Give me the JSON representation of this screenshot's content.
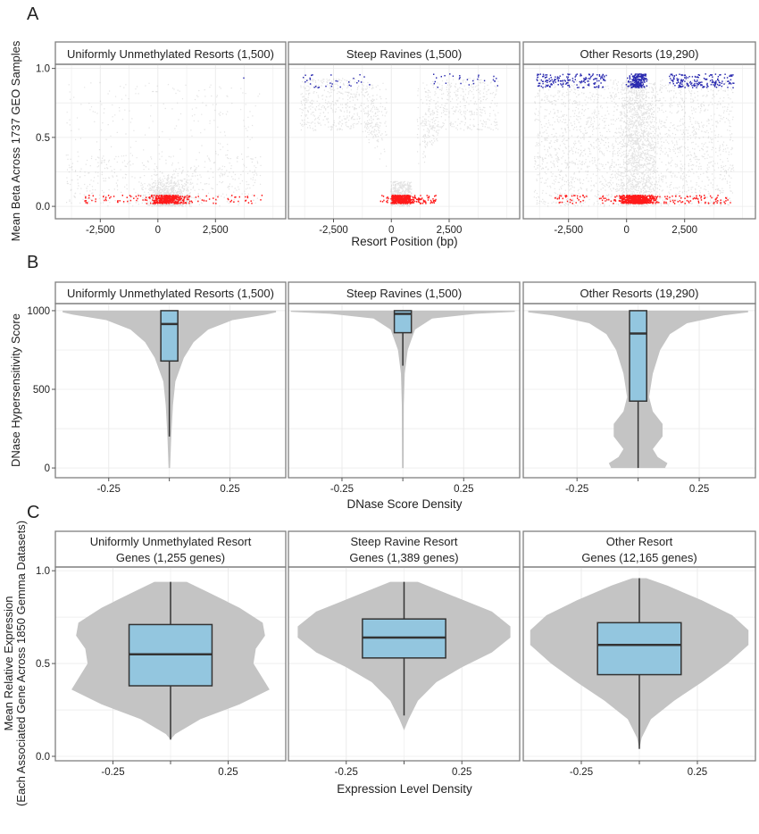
{
  "colors": {
    "grey_points": "#b0b0b0",
    "red_points": "#ff1a1a",
    "blue_points": "#2b2bb0",
    "violin": "#c4c4c4",
    "box": "#93c6df",
    "strip_bg": "#ffffff",
    "frame": "#7f7f7f"
  },
  "chart_data": [
    {
      "panel_label": "A",
      "type": "scatter",
      "xlabel": "Resort Position (bp)",
      "ylabel": "Mean Beta Across 1737 GEO Samples",
      "xlim": [
        -4450,
        5550
      ],
      "ylim": [
        -0.09,
        1.03
      ],
      "xticks": [
        {
          "v": -2500,
          "label": "-2,500"
        },
        {
          "v": 0,
          "label": "0"
        },
        {
          "v": 2500,
          "label": "2,500"
        }
      ],
      "yticks": [
        {
          "v": 0,
          "label": "0.0"
        },
        {
          "v": 0.5,
          "label": "0.5"
        },
        {
          "v": 1,
          "label": "1.0"
        }
      ],
      "grid": true,
      "facets": [
        {
          "title": "Uniformly Unmethylated Resorts (1,500)",
          "pattern": "unmethylated"
        },
        {
          "title": "Steep Ravines (1,500)",
          "pattern": "ravine"
        },
        {
          "title": "Other Resorts (19,290)",
          "pattern": "other"
        }
      ]
    },
    {
      "panel_label": "B",
      "type": "violin",
      "xlabel": "DNase Score Density",
      "ylabel": "DNase Hypersensitivity Score",
      "xlim": [
        -0.47,
        0.48
      ],
      "ylim": [
        -62,
        1045
      ],
      "xticks": [
        {
          "v": -0.25,
          "label": "-0.25"
        },
        {
          "v": 0.25,
          "label": "0.25"
        }
      ],
      "yticks": [
        {
          "v": 0,
          "label": "0"
        },
        {
          "v": 500,
          "label": "500"
        },
        {
          "v": 1000,
          "label": "1000"
        }
      ],
      "grid": true,
      "facets": [
        {
          "title": "Uniformly Unmethylated Resorts (1,500)",
          "box": {
            "min": 200,
            "q1": 680,
            "median": 915,
            "q3": 1000,
            "max": 1000
          },
          "density": [
            [
              0,
              0.003
            ],
            [
              200,
              0.008
            ],
            [
              400,
              0.015
            ],
            [
              550,
              0.025
            ],
            [
              700,
              0.06
            ],
            [
              800,
              0.1
            ],
            [
              880,
              0.16
            ],
            [
              940,
              0.26
            ],
            [
              975,
              0.4
            ],
            [
              990,
              0.44
            ],
            [
              1000,
              0.44
            ]
          ]
        },
        {
          "title": "Steep Ravines (1,500)",
          "box": {
            "min": 650,
            "q1": 860,
            "median": 980,
            "q3": 1000,
            "max": 1000
          },
          "density": [
            [
              0,
              0.003
            ],
            [
              400,
              0.004
            ],
            [
              600,
              0.008
            ],
            [
              750,
              0.02
            ],
            [
              880,
              0.05
            ],
            [
              950,
              0.12
            ],
            [
              980,
              0.3
            ],
            [
              992,
              0.46
            ],
            [
              1000,
              0.46
            ]
          ]
        },
        {
          "title": "Other Resorts (19,290)",
          "box": {
            "min": 0,
            "q1": 425,
            "median": 855,
            "q3": 1000,
            "max": 1000
          },
          "density": [
            [
              0,
              0.11
            ],
            [
              30,
              0.12
            ],
            [
              70,
              0.08
            ],
            [
              120,
              0.06
            ],
            [
              200,
              0.1
            ],
            [
              280,
              0.1
            ],
            [
              360,
              0.06
            ],
            [
              450,
              0.045
            ],
            [
              600,
              0.06
            ],
            [
              750,
              0.09
            ],
            [
              850,
              0.13
            ],
            [
              920,
              0.2
            ],
            [
              970,
              0.35
            ],
            [
              990,
              0.45
            ],
            [
              1000,
              0.45
            ]
          ]
        }
      ]
    },
    {
      "panel_label": "C",
      "type": "violin",
      "xlabel": "Expression Level Density",
      "ylabel": "Mean Relative Expression",
      "ylabel2": "(Each Associated Gene Across 1850 Gemma Datasets)",
      "xlim": [
        -0.5,
        0.5
      ],
      "ylim": [
        -0.024,
        1.02
      ],
      "xticks": [
        {
          "v": -0.25,
          "label": "-0.25"
        },
        {
          "v": 0.25,
          "label": "0.25"
        }
      ],
      "yticks": [
        {
          "v": 0,
          "label": "0.0"
        },
        {
          "v": 0.5,
          "label": "0.5"
        },
        {
          "v": 1,
          "label": "1.0"
        }
      ],
      "grid": true,
      "facets": [
        {
          "title": "Uniformly Unmethylated Resort",
          "title2": "Genes (1,255 genes)",
          "box": {
            "min": 0.09,
            "q1": 0.38,
            "median": 0.55,
            "q3": 0.71,
            "max": 0.94
          },
          "density": [
            [
              0.09,
              0.0
            ],
            [
              0.12,
              0.02
            ],
            [
              0.2,
              0.13
            ],
            [
              0.28,
              0.3
            ],
            [
              0.36,
              0.43
            ],
            [
              0.42,
              0.4
            ],
            [
              0.5,
              0.36
            ],
            [
              0.58,
              0.37
            ],
            [
              0.65,
              0.41
            ],
            [
              0.72,
              0.4
            ],
            [
              0.8,
              0.3
            ],
            [
              0.88,
              0.17
            ],
            [
              0.94,
              0.07
            ]
          ]
        },
        {
          "title": "Steep Ravine Resort",
          "title2": "Genes (1,389 genes)",
          "box": {
            "min": 0.22,
            "q1": 0.53,
            "median": 0.64,
            "q3": 0.74,
            "max": 0.94
          },
          "density": [
            [
              0.14,
              0.0
            ],
            [
              0.2,
              0.02
            ],
            [
              0.3,
              0.06
            ],
            [
              0.4,
              0.14
            ],
            [
              0.48,
              0.25
            ],
            [
              0.56,
              0.38
            ],
            [
              0.64,
              0.46
            ],
            [
              0.7,
              0.46
            ],
            [
              0.78,
              0.38
            ],
            [
              0.86,
              0.22
            ],
            [
              0.94,
              0.06
            ]
          ]
        },
        {
          "title": "Other Resort",
          "title2": "Genes (12,165 genes)",
          "box": {
            "min": 0.04,
            "q1": 0.44,
            "median": 0.6,
            "q3": 0.72,
            "max": 0.96
          },
          "density": [
            [
              0.04,
              0.0
            ],
            [
              0.1,
              0.01
            ],
            [
              0.2,
              0.05
            ],
            [
              0.3,
              0.15
            ],
            [
              0.4,
              0.27
            ],
            [
              0.5,
              0.38
            ],
            [
              0.6,
              0.47
            ],
            [
              0.68,
              0.47
            ],
            [
              0.76,
              0.4
            ],
            [
              0.84,
              0.27
            ],
            [
              0.92,
              0.12
            ],
            [
              0.96,
              0.03
            ]
          ]
        }
      ]
    }
  ]
}
